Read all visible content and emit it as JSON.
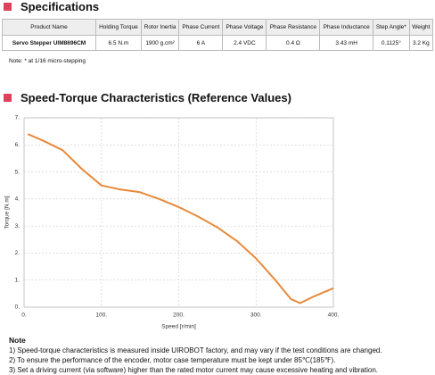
{
  "header": {
    "title": "Specifications"
  },
  "table": {
    "columns": [
      "Product Name",
      "Holding Torque",
      "Rotor Inertia",
      "Phase Current",
      "Phase Voltage",
      "Phase Resistance",
      "Phase Inductance",
      "Step Angle*",
      "Weight"
    ],
    "rows": [
      [
        "Servo Stepper UIM8696CM",
        "6.5 N.m",
        "1900 g.cm²",
        "6 A",
        "2.4 VDC",
        "0.4 Ω",
        "3.43 mH",
        "0.1125°",
        "3.2 Kg"
      ]
    ]
  },
  "note": "Note: * at 1/16 micro-stepping",
  "section": {
    "title": "Speed-Torque Characteristics (Reference Values)"
  },
  "chart_data": {
    "type": "line",
    "xlabel": "Speed [r/min]",
    "ylabel": "Torque [N.m]",
    "color": "#e8893a",
    "grid": true,
    "x": [
      5,
      25,
      50,
      75,
      100,
      125,
      150,
      175,
      200,
      225,
      250,
      275,
      300,
      325,
      345,
      357,
      375,
      400
    ],
    "values": [
      6.4,
      6.15,
      5.8,
      5.1,
      4.5,
      4.35,
      4.25,
      4.0,
      3.7,
      3.35,
      2.95,
      2.45,
      1.8,
      1.0,
      0.3,
      0.15,
      0.4,
      0.7
    ],
    "xlim": [
      0,
      400
    ],
    "ylim": [
      0,
      7
    ],
    "xticks": [
      {
        "value": 0,
        "label": "0."
      },
      {
        "value": 100,
        "label": "100."
      },
      {
        "value": 200,
        "label": "200."
      },
      {
        "value": 300,
        "label": "300."
      },
      {
        "value": 400,
        "label": "400."
      }
    ],
    "yticks": [
      {
        "value": 0,
        "label": "0."
      },
      {
        "value": 1,
        "label": "1."
      },
      {
        "value": 2,
        "label": "2."
      },
      {
        "value": 3,
        "label": "3."
      },
      {
        "value": 4,
        "label": "4."
      },
      {
        "value": 5,
        "label": "5."
      },
      {
        "value": 6,
        "label": "6."
      },
      {
        "value": 7,
        "label": "7."
      }
    ]
  },
  "notes": {
    "title": "Note",
    "items": [
      "1)  Speed-torque characteristics is measured inside UIROBOT factory, and may vary if the test conditions are changed.",
      "2)  To ensure the performance of the encoder, motor case temperature must be kept under 85℃(185℉).",
      "3)  Set a driving current (via software) higher than the rated motor current may cause excessive heating and vibration."
    ]
  }
}
